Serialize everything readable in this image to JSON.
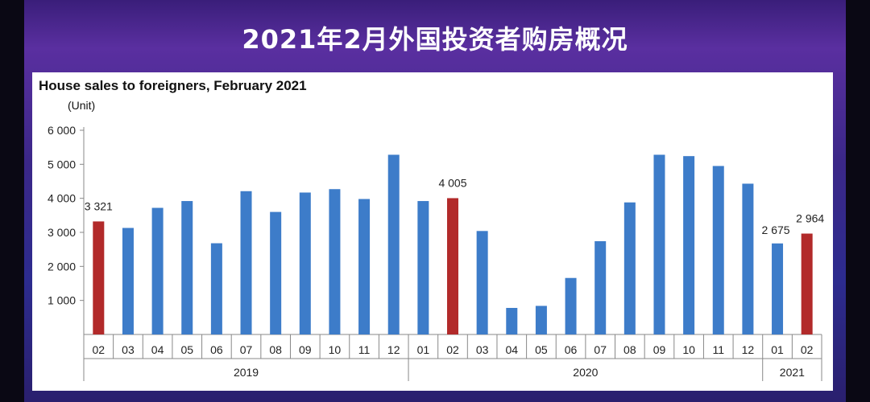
{
  "banner": {
    "title": "2021年2月外国投资者购房概况"
  },
  "colors": {
    "normal": "#3d7cc9",
    "highlight": "#b22a2a",
    "axis": "#888888",
    "text": "#222222"
  },
  "chart_data": {
    "type": "bar",
    "title": "House sales to foreigners, February 2021",
    "unit_label": "(Unit)",
    "ylim": [
      0,
      6000
    ],
    "yticks": [
      {
        "value": 1000,
        "label": "1 000"
      },
      {
        "value": 2000,
        "label": "2 000"
      },
      {
        "value": 3000,
        "label": "3 000"
      },
      {
        "value": 4000,
        "label": "4 000"
      },
      {
        "value": 5000,
        "label": "5 000"
      },
      {
        "value": 6000,
        "label": "6 000"
      }
    ],
    "categories": [
      "02",
      "03",
      "04",
      "05",
      "06",
      "07",
      "08",
      "09",
      "10",
      "11",
      "12",
      "01",
      "02",
      "03",
      "04",
      "05",
      "06",
      "07",
      "08",
      "09",
      "10",
      "11",
      "12",
      "01",
      "02"
    ],
    "values": [
      3321,
      3130,
      3720,
      3920,
      2680,
      4210,
      3600,
      4170,
      4270,
      3980,
      5280,
      3920,
      4005,
      3040,
      780,
      840,
      1660,
      2740,
      3880,
      5280,
      5240,
      4950,
      4430,
      2675,
      2964
    ],
    "highlighted": [
      0,
      12,
      24
    ],
    "data_labels": [
      {
        "index": 0,
        "text": "3 321"
      },
      {
        "index": 12,
        "text": "4 005"
      },
      {
        "index": 23,
        "text": "2 675"
      },
      {
        "index": 24,
        "text": "2 964"
      }
    ],
    "year_groups": [
      {
        "label": "2019",
        "start": 0,
        "end": 10
      },
      {
        "label": "2020",
        "start": 11,
        "end": 22
      },
      {
        "label": "2021",
        "start": 23,
        "end": 24
      }
    ],
    "grid": false,
    "legend": "none"
  }
}
